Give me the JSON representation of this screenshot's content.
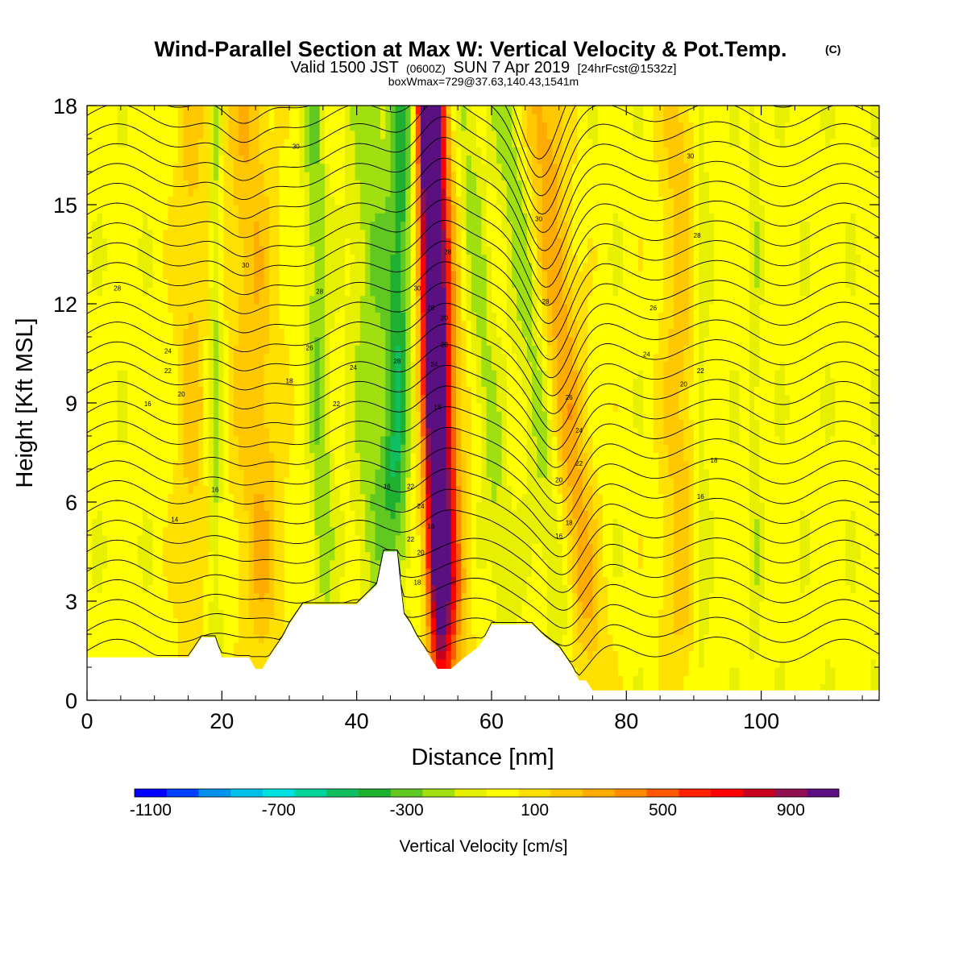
{
  "chart_data": {
    "type": "heatmap",
    "title": "Wind-Parallel Section at Max W: Vertical Velocity & Pot.Temp.",
    "title_mark": "(C)",
    "subtitle": {
      "prefix": "Valid 1500 JST",
      "utc": "(0600Z)",
      "date": "SUN 7 Apr 2019",
      "forecast": "[24hrFcst@1532z]"
    },
    "subtitle2": "boxWmax=729@37.63,140.43,1541m",
    "xlabel": "Distance [nm]",
    "ylabel": "Height [Kft MSL]",
    "xlim": [
      0,
      117.5
    ],
    "ylim": [
      0,
      18
    ],
    "x_ticks": [
      0,
      20,
      40,
      60,
      80,
      100
    ],
    "y_ticks": [
      0,
      3,
      6,
      9,
      12,
      15,
      18
    ],
    "terrain": {
      "x": [
        0,
        15,
        16,
        17,
        19,
        20,
        24,
        25,
        26,
        27,
        28,
        29,
        30,
        31,
        32,
        34,
        36,
        40,
        42,
        43,
        44,
        45,
        46,
        46.5,
        47,
        48,
        49,
        50,
        52,
        54,
        56,
        58,
        59,
        60,
        61,
        62,
        64,
        66,
        68,
        70,
        71,
        72,
        73,
        74,
        75,
        76,
        78,
        80,
        86,
        90,
        100,
        105,
        110,
        117.5
      ],
      "h": [
        1.3,
        1.3,
        1.6,
        1.9,
        1.9,
        1.3,
        1.3,
        0.95,
        0.95,
        1.3,
        1.6,
        1.9,
        2.3,
        2.6,
        2.9,
        2.9,
        2.9,
        2.9,
        3.3,
        3.5,
        4.5,
        4.5,
        4.5,
        3.5,
        2.6,
        2.3,
        1.9,
        1.6,
        0.95,
        0.95,
        1.3,
        1.6,
        1.9,
        2.3,
        2.3,
        2.3,
        2.3,
        2.3,
        1.9,
        1.6,
        1.3,
        1.0,
        0.6,
        0.6,
        0.3,
        0.3,
        0.3,
        0.3,
        0.3,
        0.3,
        0.3,
        0.3,
        0.3,
        0.3
      ]
    },
    "colorbar": {
      "label": "Vertical Velocity [cm/s]",
      "ticks": [
        "-1100",
        "-700",
        "-300",
        "100",
        "500",
        "900"
      ],
      "levels": [
        -1100,
        -1000,
        -900,
        -800,
        -700,
        -600,
        -500,
        -400,
        -300,
        -200,
        -100,
        0,
        100,
        200,
        300,
        400,
        500,
        600,
        700,
        800,
        900,
        1000
      ],
      "colors": [
        "#0000ff",
        "#0040ff",
        "#0090ee",
        "#00c0e8",
        "#00e2e0",
        "#00d49a",
        "#10c060",
        "#20b030",
        "#60c820",
        "#a0e010",
        "#e6f000",
        "#ffff00",
        "#ffe000",
        "#ffc800",
        "#ffac00",
        "#ff8c00",
        "#ff5800",
        "#ff2000",
        "#ff0000",
        "#c80020",
        "#901050",
        "#5a1080"
      ]
    },
    "w_features": [
      {
        "kind": "updraft",
        "x0": 51.5,
        "slope": -0.1,
        "width": 1.7,
        "peak": 1000
      },
      {
        "kind": "updraft",
        "x0": 53.0,
        "slope": -0.15,
        "width": 2.3,
        "peak": 600
      },
      {
        "kind": "downdraft",
        "x0": 46.0,
        "slope": 0.1,
        "width": 1.8,
        "peak": -380
      },
      {
        "kind": "downdraft",
        "x0": 42.5,
        "slope": -0.05,
        "width": 3.0,
        "peak": -220
      },
      {
        "kind": "downdraft",
        "x0": 34.5,
        "slope": -0.1,
        "width": 1.5,
        "peak": -240
      },
      {
        "kind": "downdraft",
        "x0": 67.0,
        "slope": -0.55,
        "width": 2.5,
        "peak": -200
      },
      {
        "kind": "downdraft",
        "x0": 59.5,
        "slope": -0.4,
        "width": 1.8,
        "peak": -170
      },
      {
        "kind": "updraft",
        "x0": 71.0,
        "slope": -0.4,
        "width": 3.0,
        "peak": 320
      },
      {
        "kind": "updraft",
        "x0": 25.0,
        "slope": -0.15,
        "width": 3.5,
        "peak": 250
      },
      {
        "kind": "downdraft",
        "x0": 19.0,
        "slope": 0.0,
        "width": 1.0,
        "peak": -200
      },
      {
        "kind": "downdraft",
        "x0": 91.0,
        "slope": 0.0,
        "width": 1.2,
        "peak": -150
      },
      {
        "kind": "downdraft",
        "x0": 99.0,
        "slope": 0.0,
        "width": 0.8,
        "peak": -120
      },
      {
        "kind": "updraft",
        "x0": 88.0,
        "slope": 0.0,
        "width": 3.0,
        "peak": 200
      },
      {
        "kind": "updraft",
        "x0": 15.5,
        "slope": 0.0,
        "width": 2.5,
        "peak": 180
      }
    ],
    "contour_labels": [
      {
        "x": 4.5,
        "y": 12.4,
        "t": "28"
      },
      {
        "x": 23.5,
        "y": 13.1,
        "t": "30"
      },
      {
        "x": 31,
        "y": 16.7,
        "t": "30"
      },
      {
        "x": 12,
        "y": 10.5,
        "t": "24"
      },
      {
        "x": 12,
        "y": 9.9,
        "t": "22"
      },
      {
        "x": 14,
        "y": 9.2,
        "t": "20"
      },
      {
        "x": 9,
        "y": 8.9,
        "t": "16"
      },
      {
        "x": 13,
        "y": 5.4,
        "t": "14"
      },
      {
        "x": 19,
        "y": 6.3,
        "t": "16"
      },
      {
        "x": 30,
        "y": 9.6,
        "t": "18"
      },
      {
        "x": 34.5,
        "y": 12.3,
        "t": "28"
      },
      {
        "x": 33,
        "y": 10.6,
        "t": "26"
      },
      {
        "x": 39.5,
        "y": 10.0,
        "t": "24"
      },
      {
        "x": 37,
        "y": 8.9,
        "t": "22"
      },
      {
        "x": 46,
        "y": 10.2,
        "t": "28"
      },
      {
        "x": 49,
        "y": 12.4,
        "t": "30"
      },
      {
        "x": 51,
        "y": 11.8,
        "t": "28"
      },
      {
        "x": 53.5,
        "y": 13.5,
        "t": "28"
      },
      {
        "x": 53,
        "y": 11.5,
        "t": "20"
      },
      {
        "x": 53,
        "y": 10.7,
        "t": "20"
      },
      {
        "x": 51.5,
        "y": 10.1,
        "t": "24"
      },
      {
        "x": 52,
        "y": 8.8,
        "t": "18"
      },
      {
        "x": 44.5,
        "y": 6.4,
        "t": "16"
      },
      {
        "x": 48,
        "y": 6.4,
        "t": "22"
      },
      {
        "x": 49.5,
        "y": 5.8,
        "t": "24"
      },
      {
        "x": 51,
        "y": 5.2,
        "t": "16"
      },
      {
        "x": 48,
        "y": 4.8,
        "t": "22"
      },
      {
        "x": 49.5,
        "y": 4.4,
        "t": "20"
      },
      {
        "x": 49,
        "y": 3.5,
        "t": "18"
      },
      {
        "x": 67,
        "y": 14.5,
        "t": "30"
      },
      {
        "x": 68,
        "y": 12.0,
        "t": "28"
      },
      {
        "x": 71.5,
        "y": 9.1,
        "t": "26"
      },
      {
        "x": 73,
        "y": 8.1,
        "t": "24"
      },
      {
        "x": 73,
        "y": 7.1,
        "t": "22"
      },
      {
        "x": 70,
        "y": 6.6,
        "t": "20"
      },
      {
        "x": 71.5,
        "y": 5.3,
        "t": "18"
      },
      {
        "x": 70,
        "y": 4.9,
        "t": "16"
      },
      {
        "x": 89.5,
        "y": 16.4,
        "t": "30"
      },
      {
        "x": 90.5,
        "y": 14.0,
        "t": "28"
      },
      {
        "x": 84,
        "y": 11.8,
        "t": "26"
      },
      {
        "x": 83,
        "y": 10.4,
        "t": "24"
      },
      {
        "x": 88.5,
        "y": 9.5,
        "t": "20"
      },
      {
        "x": 91,
        "y": 9.9,
        "t": "22"
      },
      {
        "x": 93,
        "y": 7.2,
        "t": "18"
      },
      {
        "x": 91,
        "y": 6.1,
        "t": "16"
      }
    ]
  }
}
